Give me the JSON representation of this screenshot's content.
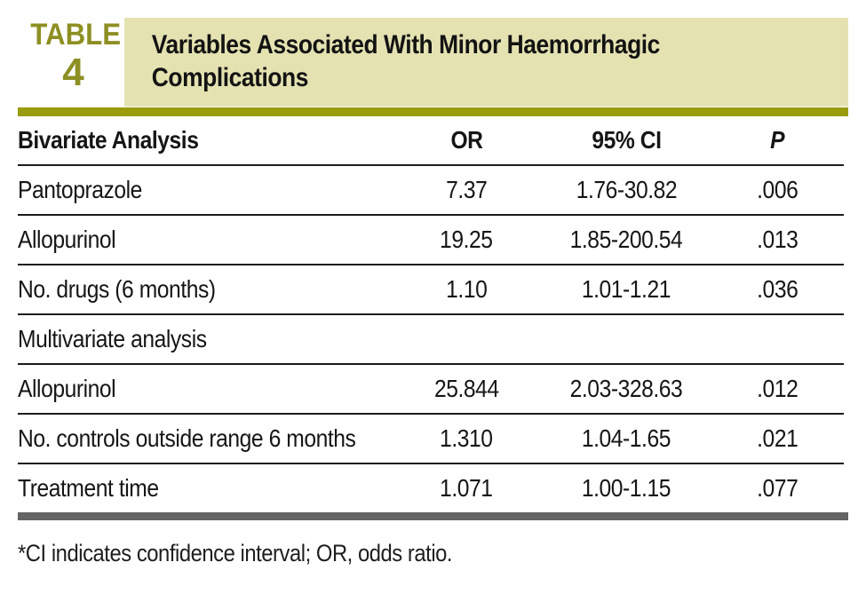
{
  "badge": {
    "word": "TABLE",
    "number": "4"
  },
  "title": "Variables Associated With Minor Haemorrhagic Complications",
  "columns": [
    "Bivariate Analysis",
    "OR",
    "95% CI",
    "P"
  ],
  "rows": [
    {
      "label": "Pantoprazole",
      "or": "7.37",
      "ci": "1.76-30.82",
      "p": ".006"
    },
    {
      "label": "Allopurinol",
      "or": "19.25",
      "ci": "1.85-200.54",
      "p": ".013"
    },
    {
      "label": "No. drugs (6 months)",
      "or": "1.10",
      "ci": "1.01-1.21",
      "p": ".036"
    },
    {
      "label": "Multivariate analysis",
      "or": "",
      "ci": "",
      "p": ""
    },
    {
      "label": "Allopurinol",
      "or": "25.844",
      "ci": "2.03-328.63",
      "p": ".012"
    },
    {
      "label": "No. controls outside range 6 months",
      "or": "1.310",
      "ci": "1.04-1.65",
      "p": ".021"
    },
    {
      "label": "Treatment time",
      "or": "1.071",
      "ci": "1.00-1.15",
      "p": ".077"
    }
  ],
  "footnote": "*CI indicates confidence interval; OR, odds ratio.",
  "colors": {
    "olive_text": "#8e8f23",
    "olive_rule": "#9b9b0e",
    "title_background": "#e4e2b1",
    "gray_rule": "#646464",
    "text": "#161616"
  }
}
